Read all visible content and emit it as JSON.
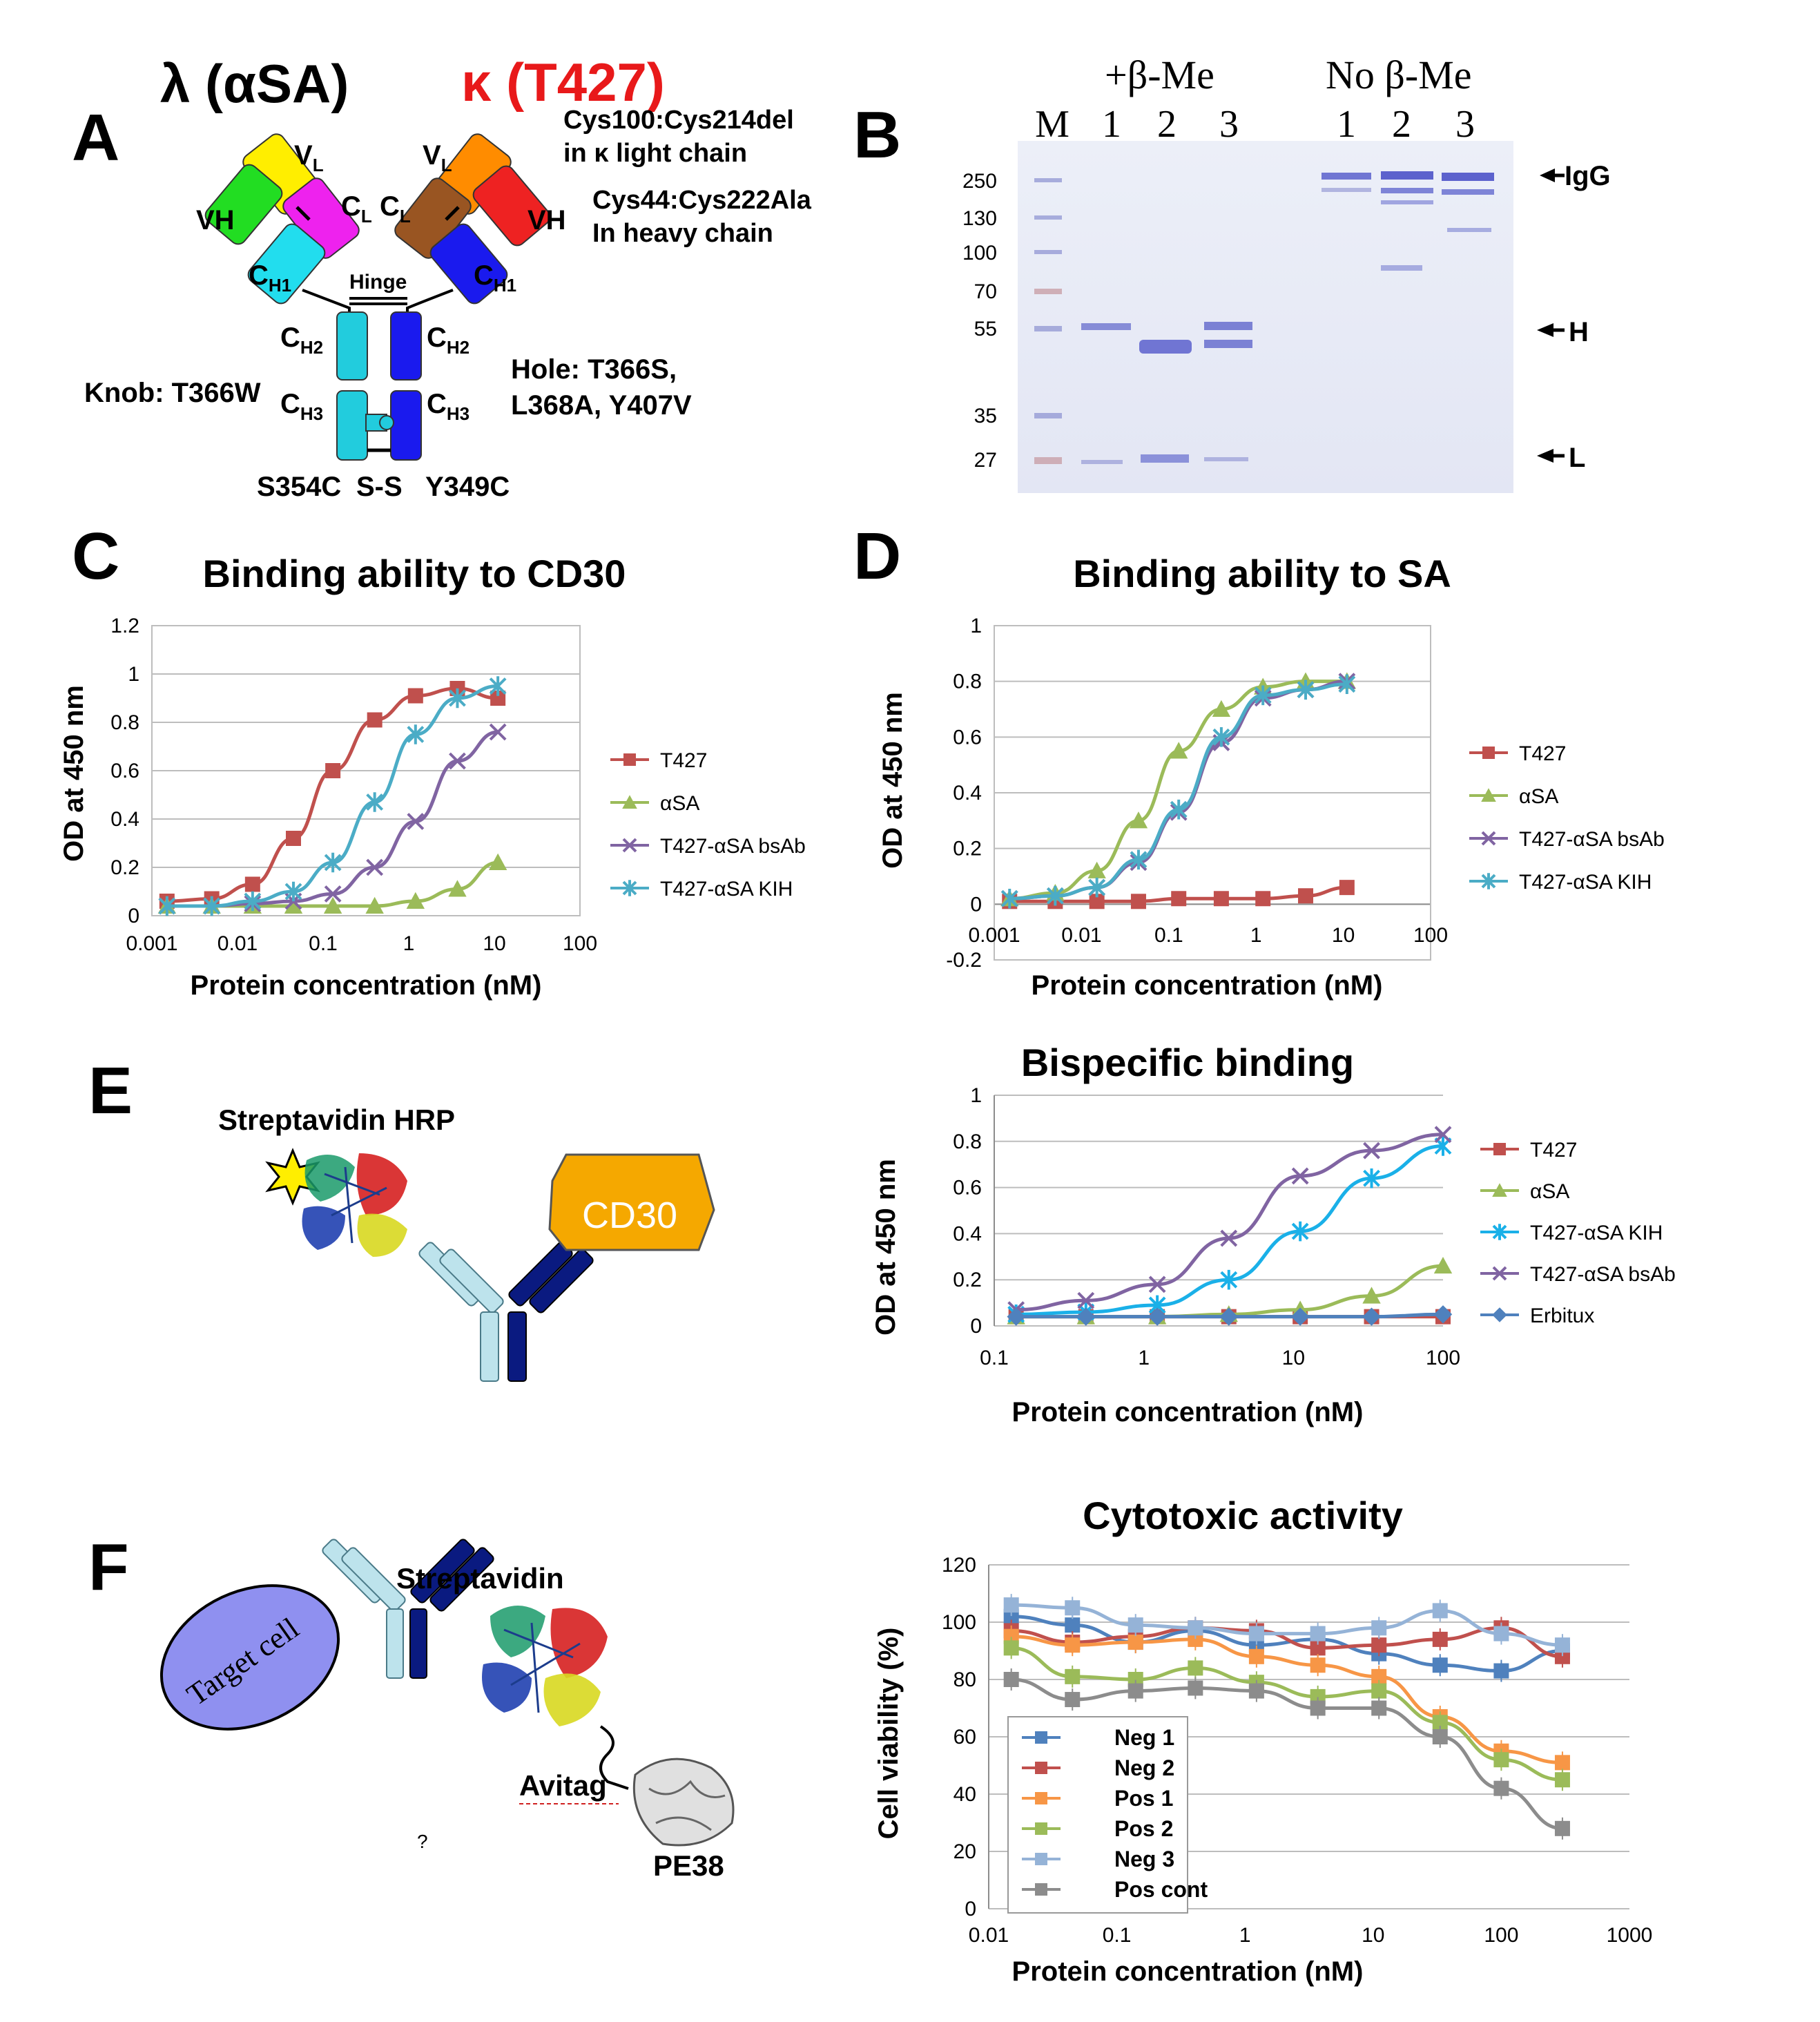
{
  "panel_letters": {
    "A": "A",
    "B": "B",
    "C": "C",
    "D": "D",
    "E": "E",
    "F": "F"
  },
  "panelA": {
    "lambda_title": "λ (αSA)",
    "kappa_title": "κ (T427)",
    "note1_line1": "Cys100:Cys214del",
    "note1_line2": "in κ light chain",
    "note2_line1": "Cys44:Cys222Ala",
    "note2_line2": "In heavy chain",
    "vl": "V",
    "vl_sub": "L",
    "vh": "VH",
    "cl": "C",
    "cl_sub": "L",
    "ch1": "C",
    "ch1_sub": "H1",
    "ch2": "C",
    "ch2_sub": "H2",
    "ch3": "C",
    "ch3_sub": "H3",
    "hinge": "Hinge",
    "knob": "Knob: T366W",
    "hole_line1": "Hole: T366S,",
    "hole_line2": "L368A, Y407V",
    "s354c": "S354C",
    "ss": "S-S",
    "y349c": "Y349C",
    "colors": {
      "vl_left": "#ffee00",
      "vh_left": "#22dd22",
      "cl_left": "#ee22ee",
      "ch_left": "#22ddee",
      "vl_right": "#ff8c00",
      "vh_right": "#ee2222",
      "cl_right": "#995522",
      "ch_right": "#1a1aee",
      "ch_left_fc": "#22ccdd"
    }
  },
  "panelB": {
    "header_reduced": "+β-Me",
    "header_nonreduced": "No β-Me",
    "lanes": [
      "M",
      "1",
      "2",
      "3",
      "1",
      "2",
      "3"
    ],
    "markers": [
      "250",
      "130",
      "100",
      "70",
      "55",
      "35",
      "27"
    ],
    "labels": {
      "igg": "IgG",
      "h": "H",
      "l": "L"
    }
  },
  "panelE": {
    "streptavidin_hrp": "Streptavidin HRP",
    "cd30": "CD30"
  },
  "panelF": {
    "target_cell": "Target cell",
    "streptavidin": "Streptavidin",
    "avitag": "Avitag",
    "pe38": "PE38",
    "question": "?"
  },
  "chart_data": [
    {
      "id": "C",
      "type": "line",
      "title": "Binding ability to CD30",
      "xlabel": "Protein concentration (nM)",
      "ylabel": "OD at 450 nm",
      "xscale": "log",
      "xlim": [
        0.001,
        100
      ],
      "ylim": [
        0,
        1.2
      ],
      "xticks": [
        "0.001",
        "0.01",
        "0.1",
        "1",
        "10",
        "100"
      ],
      "yticks": [
        "0",
        "0.2",
        "0.4",
        "0.6",
        "0.8",
        "1",
        "1.2"
      ],
      "legend_position": "right",
      "series": [
        {
          "name": "T427",
          "color": "#c0504d",
          "marker": "square",
          "x": [
            0.0015,
            0.005,
            0.015,
            0.045,
            0.13,
            0.4,
            1.2,
            3.7,
            11
          ],
          "y": [
            0.06,
            0.07,
            0.13,
            0.32,
            0.6,
            0.81,
            0.91,
            0.94,
            0.9
          ]
        },
        {
          "name": "αSA",
          "color": "#9bbb59",
          "marker": "triangle",
          "x": [
            0.0015,
            0.005,
            0.015,
            0.045,
            0.13,
            0.4,
            1.2,
            3.7,
            11
          ],
          "y": [
            0.04,
            0.04,
            0.04,
            0.04,
            0.04,
            0.04,
            0.06,
            0.11,
            0.22
          ]
        },
        {
          "name": "T427-αSA bsAb",
          "color": "#8064a2",
          "marker": "x",
          "x": [
            0.0015,
            0.005,
            0.015,
            0.045,
            0.13,
            0.4,
            1.2,
            3.7,
            11
          ],
          "y": [
            0.04,
            0.04,
            0.05,
            0.06,
            0.09,
            0.2,
            0.39,
            0.64,
            0.76
          ]
        },
        {
          "name": "T427-αSA KIH",
          "color": "#4bacc6",
          "marker": "star",
          "x": [
            0.0015,
            0.005,
            0.015,
            0.045,
            0.13,
            0.4,
            1.2,
            3.7,
            11
          ],
          "y": [
            0.04,
            0.04,
            0.06,
            0.1,
            0.22,
            0.47,
            0.75,
            0.9,
            0.95
          ]
        }
      ]
    },
    {
      "id": "D",
      "type": "line",
      "title": "Binding ability to SA",
      "xlabel": "Protein concentration (nM)",
      "ylabel": "OD at 450 nm",
      "xscale": "log",
      "xlim": [
        0.001,
        100
      ],
      "ylim": [
        -0.2,
        1
      ],
      "xticks": [
        "0.001",
        "0.01",
        "0.1",
        "1",
        "10",
        "100"
      ],
      "yticks": [
        "-0.2",
        "0",
        "0.2",
        "0.4",
        "0.6",
        "0.8",
        "1"
      ],
      "legend_position": "right",
      "series": [
        {
          "name": "T427",
          "color": "#c0504d",
          "marker": "square",
          "x": [
            0.0015,
            0.005,
            0.015,
            0.045,
            0.13,
            0.4,
            1.2,
            3.7,
            11
          ],
          "y": [
            0.01,
            0.01,
            0.01,
            0.01,
            0.02,
            0.02,
            0.02,
            0.03,
            0.06
          ]
        },
        {
          "name": "αSA",
          "color": "#9bbb59",
          "marker": "triangle",
          "x": [
            0.0015,
            0.005,
            0.015,
            0.045,
            0.13,
            0.4,
            1.2,
            3.7,
            11
          ],
          "y": [
            0.02,
            0.04,
            0.12,
            0.3,
            0.55,
            0.7,
            0.78,
            0.8,
            0.8
          ]
        },
        {
          "name": "T427-αSA bsAb",
          "color": "#8064a2",
          "marker": "x",
          "x": [
            0.0015,
            0.005,
            0.015,
            0.045,
            0.13,
            0.4,
            1.2,
            3.7,
            11
          ],
          "y": [
            0.02,
            0.03,
            0.06,
            0.15,
            0.33,
            0.58,
            0.74,
            0.77,
            0.8
          ]
        },
        {
          "name": "T427-αSA KIH",
          "color": "#4bacc6",
          "marker": "star",
          "x": [
            0.0015,
            0.005,
            0.015,
            0.045,
            0.13,
            0.4,
            1.2,
            3.7,
            11
          ],
          "y": [
            0.02,
            0.03,
            0.06,
            0.16,
            0.34,
            0.6,
            0.75,
            0.77,
            0.79
          ]
        }
      ]
    },
    {
      "id": "E",
      "type": "line",
      "title": "Bispecific binding",
      "xlabel": "Protein concentration (nM)",
      "ylabel": "OD at 450 nm",
      "xscale": "log",
      "xlim": [
        0.1,
        100
      ],
      "ylim": [
        0,
        1
      ],
      "xticks": [
        "0.1",
        "1",
        "10",
        "100"
      ],
      "yticks": [
        "0",
        "0.2",
        "0.4",
        "0.6",
        "0.8",
        "1"
      ],
      "legend_position": "right",
      "series": [
        {
          "name": "T427",
          "color": "#c0504d",
          "marker": "square",
          "x": [
            0.14,
            0.41,
            1.23,
            3.7,
            11.1,
            33.3,
            100
          ],
          "y": [
            0.04,
            0.04,
            0.04,
            0.04,
            0.04,
            0.04,
            0.04
          ]
        },
        {
          "name": "αSA",
          "color": "#9bbb59",
          "marker": "triangle",
          "x": [
            0.14,
            0.41,
            1.23,
            3.7,
            11.1,
            33.3,
            100
          ],
          "y": [
            0.04,
            0.04,
            0.04,
            0.05,
            0.07,
            0.13,
            0.26
          ]
        },
        {
          "name": "T427-αSA KIH",
          "color": "#1ab0e8",
          "marker": "star",
          "x": [
            0.14,
            0.41,
            1.23,
            3.7,
            11.1,
            33.3,
            100
          ],
          "y": [
            0.05,
            0.06,
            0.09,
            0.2,
            0.41,
            0.64,
            0.78
          ]
        },
        {
          "name": "T427-αSA bsAb",
          "color": "#8064a2",
          "marker": "x",
          "x": [
            0.14,
            0.41,
            1.23,
            3.7,
            11.1,
            33.3,
            100
          ],
          "y": [
            0.07,
            0.11,
            0.18,
            0.38,
            0.65,
            0.76,
            0.83
          ]
        },
        {
          "name": "Erbitux",
          "color": "#4f81bd",
          "marker": "diamond",
          "x": [
            0.14,
            0.41,
            1.23,
            3.7,
            11.1,
            33.3,
            100
          ],
          "y": [
            0.04,
            0.04,
            0.04,
            0.04,
            0.04,
            0.04,
            0.05
          ]
        }
      ]
    },
    {
      "id": "F",
      "type": "line",
      "title": "Cytotoxic activity",
      "xlabel": "Protein concentration (nM)",
      "ylabel": "Cell viability (%)",
      "xscale": "log",
      "xlim": [
        0.01,
        1000
      ],
      "ylim": [
        0,
        120
      ],
      "xticks": [
        "0.01",
        "0.1",
        "1",
        "10",
        "100",
        "1000"
      ],
      "yticks": [
        "0",
        "20",
        "40",
        "60",
        "80",
        "100",
        "120"
      ],
      "legend_position": "lower-left",
      "series": [
        {
          "name": "Neg 1",
          "color": "#4f81bd",
          "marker": "square",
          "x": [
            0.015,
            0.045,
            0.14,
            0.41,
            1.23,
            3.7,
            11.1,
            33.3,
            100,
            300
          ],
          "y": [
            102,
            99,
            93,
            97,
            92,
            94,
            89,
            85,
            83,
            90
          ]
        },
        {
          "name": "Neg 2",
          "color": "#c0504d",
          "marker": "square",
          "x": [
            0.015,
            0.045,
            0.14,
            0.41,
            1.23,
            3.7,
            11.1,
            33.3,
            100,
            300
          ],
          "y": [
            97,
            93,
            95,
            98,
            97,
            91,
            92,
            94,
            98,
            88
          ]
        },
        {
          "name": "Pos 1",
          "color": "#f79646",
          "marker": "square",
          "x": [
            0.015,
            0.045,
            0.14,
            0.41,
            1.23,
            3.7,
            11.1,
            33.3,
            100,
            300
          ],
          "y": [
            95,
            92,
            93,
            94,
            88,
            85,
            81,
            67,
            55,
            51
          ]
        },
        {
          "name": "Pos 2",
          "color": "#9bbb59",
          "marker": "square",
          "x": [
            0.015,
            0.045,
            0.14,
            0.41,
            1.23,
            3.7,
            11.1,
            33.3,
            100,
            300
          ],
          "y": [
            91,
            81,
            80,
            84,
            79,
            74,
            76,
            65,
            52,
            45
          ]
        },
        {
          "name": "Neg 3",
          "color": "#95b3d7",
          "marker": "square",
          "x": [
            0.015,
            0.045,
            0.14,
            0.41,
            1.23,
            3.7,
            11.1,
            33.3,
            100,
            300
          ],
          "y": [
            106,
            105,
            99,
            98,
            96,
            96,
            98,
            104,
            96,
            92
          ]
        },
        {
          "name": "Pos cont",
          "color": "#8c8c8c",
          "marker": "square",
          "x": [
            0.015,
            0.045,
            0.14,
            0.41,
            1.23,
            3.7,
            11.1,
            33.3,
            100,
            300
          ],
          "y": [
            80,
            73,
            76,
            77,
            76,
            70,
            70,
            60,
            42,
            28
          ]
        }
      ]
    }
  ]
}
